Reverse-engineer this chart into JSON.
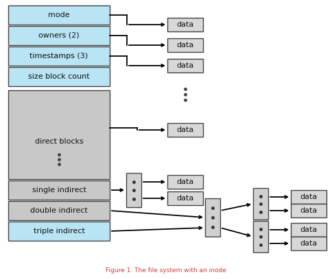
{
  "title": "Figure 1. The file system with an inode",
  "title_color": "#d04040",
  "title_fontsize": 6.5,
  "bg_color": "#ffffff",
  "inode_top_labels": [
    "mode",
    "owners (2)",
    "timestamps (3)",
    "size block count"
  ],
  "inode_top_color": "#b8e4f4",
  "inode_mid_label": "direct blocks",
  "inode_mid_color": "#c8c8c8",
  "inode_bot_labels": [
    "single indirect",
    "double indirect",
    "triple indirect"
  ],
  "inode_bot_colors": [
    "#c8c8c8",
    "#c8c8c8",
    "#b8e4f4"
  ],
  "data_box_color": "#d8d8d8",
  "indirect_box_color": "#d0d0d0",
  "edge_color": "#444444",
  "text_color": "#111111"
}
